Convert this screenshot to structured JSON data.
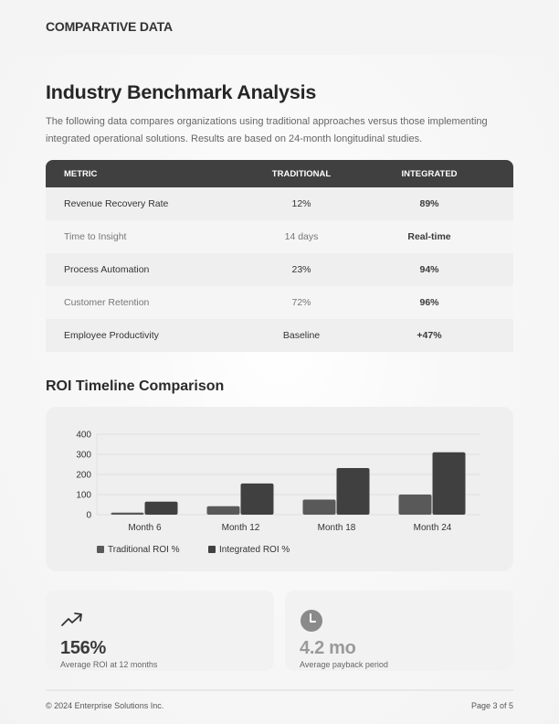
{
  "header": {
    "section_label": "COMPARATIVE DATA"
  },
  "main": {
    "title": "Industry Benchmark Analysis",
    "intro": "The following data compares organizations using traditional approaches versus those implementing integrated operational solutions. Results are based on 24-month longitudinal studies."
  },
  "table": {
    "columns": [
      "METRIC",
      "TRADITIONAL",
      "INTEGRATED"
    ],
    "rows": [
      {
        "metric": "Revenue Recovery Rate",
        "traditional": "12%",
        "integrated": "89%"
      },
      {
        "metric": "Time to Insight",
        "traditional": "14 days",
        "integrated": "Real-time"
      },
      {
        "metric": "Process Automation",
        "traditional": "23%",
        "integrated": "94%"
      },
      {
        "metric": "Customer Retention",
        "traditional": "72%",
        "integrated": "96%"
      },
      {
        "metric": "Employee Productivity",
        "traditional": "Baseline",
        "integrated": "+47%"
      }
    ]
  },
  "chart": {
    "title": "ROI Timeline Comparison"
  },
  "chart_data": {
    "type": "bar",
    "title": "ROI Timeline Comparison",
    "categories": [
      "Month 6",
      "Month 12",
      "Month 18",
      "Month 24"
    ],
    "series": [
      {
        "name": "Traditional ROI %",
        "color": "#595959",
        "values": [
          10,
          42,
          75,
          100
        ]
      },
      {
        "name": "Integrated ROI %",
        "color": "#404040",
        "values": [
          65,
          155,
          232,
          310
        ]
      }
    ],
    "xlabel": "",
    "ylabel": "",
    "ylim": [
      0,
      400
    ],
    "yticks": [
      0,
      100,
      200,
      300,
      400
    ],
    "grid": true,
    "legend_position": "bottom-left"
  },
  "stats": [
    {
      "icon": "trending-up-icon",
      "value": "156%",
      "label": "Average ROI at 12 months"
    },
    {
      "icon": "clock-icon",
      "value": "4.2 mo",
      "label": "Average payback period"
    }
  ],
  "footer": {
    "copyright": "© 2024 Enterprise Solutions Inc.",
    "page": "Page 3 of 5"
  }
}
